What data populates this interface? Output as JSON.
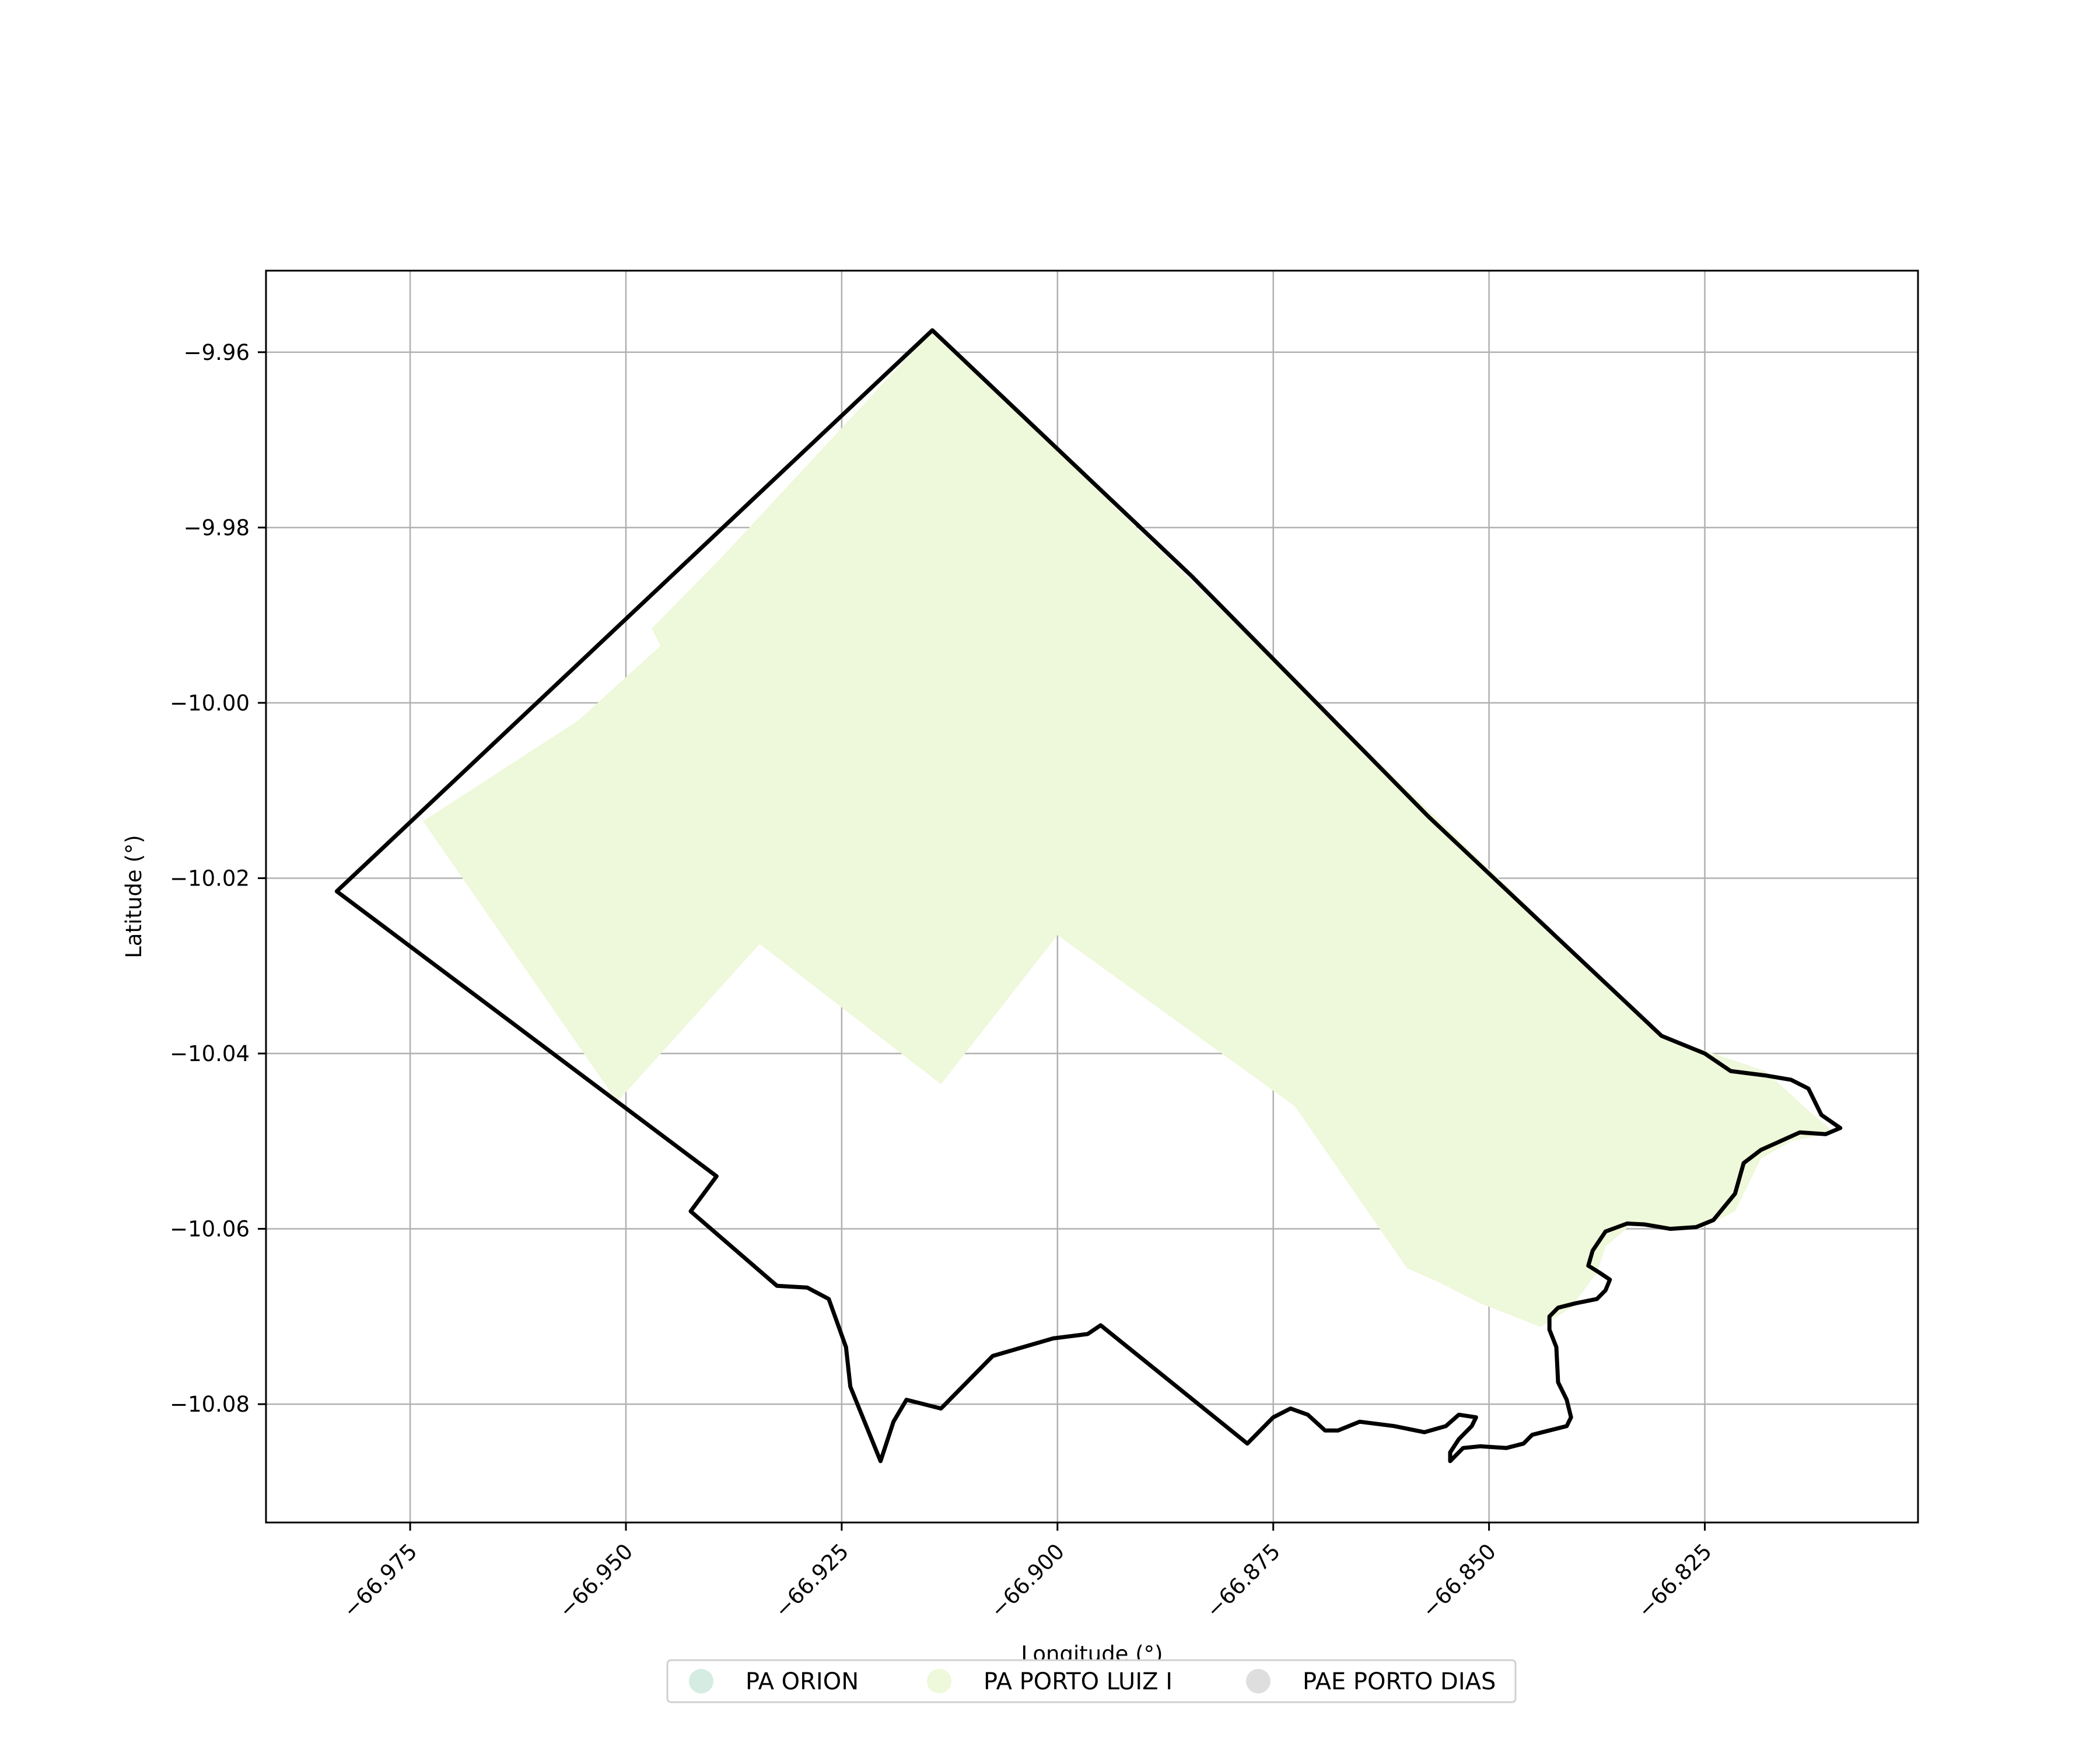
{
  "chart_data": {
    "type": "map",
    "xlabel": "Longitude (°)",
    "ylabel": "Latitude (°)",
    "xlim": [
      -66.9917,
      -66.8003
    ],
    "ylim": [
      -10.0935,
      -9.9507
    ],
    "x_ticks": [
      {
        "value": -66.975,
        "label": "−66.975"
      },
      {
        "value": -66.95,
        "label": "−66.950"
      },
      {
        "value": -66.925,
        "label": "−66.925"
      },
      {
        "value": -66.9,
        "label": "−66.900"
      },
      {
        "value": -66.875,
        "label": "−66.875"
      },
      {
        "value": -66.85,
        "label": "−66.850"
      },
      {
        "value": -66.825,
        "label": "−66.825"
      }
    ],
    "y_ticks": [
      {
        "value": -9.96,
        "label": "−9.96"
      },
      {
        "value": -9.98,
        "label": "−9.98"
      },
      {
        "value": -10.0,
        "label": "−10.00"
      },
      {
        "value": -10.02,
        "label": "−10.02"
      },
      {
        "value": -10.04,
        "label": "−10.04"
      },
      {
        "value": -10.06,
        "label": "−10.06"
      },
      {
        "value": -10.08,
        "label": "−10.08"
      }
    ],
    "grid": true,
    "legend_position": "bottom-center",
    "legend": [
      {
        "label": "PA ORION",
        "color": "#d4ece1"
      },
      {
        "label": "PA PORTO LUIZ I",
        "color": "#eef8da"
      },
      {
        "label": "PAE PORTO DIAS",
        "color": "#dedede"
      }
    ],
    "fill_color": "#eef8da",
    "outline_color": "#000000",
    "fill_polygon": [
      [
        -66.9145,
        -9.9575
      ],
      [
        -66.83,
        -10.038
      ],
      [
        -66.818,
        -10.042
      ],
      [
        -66.813,
        -10.0465
      ],
      [
        -66.81,
        -10.049
      ],
      [
        -66.815,
        -10.05
      ],
      [
        -66.8185,
        -10.052
      ],
      [
        -66.8215,
        -10.058
      ],
      [
        -66.8255,
        -10.06
      ],
      [
        -66.8335,
        -10.0595
      ],
      [
        -66.8365,
        -10.062
      ],
      [
        -66.8375,
        -10.065
      ],
      [
        -66.8405,
        -10.069
      ],
      [
        -66.844,
        -10.0712
      ],
      [
        -66.851,
        -10.0685
      ],
      [
        -66.856,
        -10.066
      ],
      [
        -66.8595,
        -10.0645
      ],
      [
        -66.8725,
        -10.046
      ],
      [
        -66.9,
        -10.0265
      ],
      [
        -66.9135,
        -10.0435
      ],
      [
        -66.9345,
        -10.0275
      ],
      [
        -66.951,
        -10.0455
      ],
      [
        -66.9735,
        -10.0135
      ],
      [
        -66.9555,
        -10.002
      ],
      [
        -66.946,
        -9.9935
      ],
      [
        -66.947,
        -9.9915
      ],
      [
        -66.939,
        -9.9835
      ]
    ],
    "outline_polygon": [
      [
        -66.9145,
        -9.9575
      ],
      [
        -66.8845,
        -9.9855
      ],
      [
        -66.857,
        -10.013
      ],
      [
        -66.83,
        -10.038
      ],
      [
        -66.825,
        -10.04
      ],
      [
        -66.822,
        -10.042
      ],
      [
        -66.818,
        -10.0425
      ],
      [
        -66.815,
        -10.043
      ],
      [
        -66.813,
        -10.044
      ],
      [
        -66.8115,
        -10.047
      ],
      [
        -66.8093,
        -10.0485
      ],
      [
        -66.811,
        -10.0492
      ],
      [
        -66.814,
        -10.049
      ],
      [
        -66.8185,
        -10.051
      ],
      [
        -66.8205,
        -10.0525
      ],
      [
        -66.8215,
        -10.056
      ],
      [
        -66.824,
        -10.059
      ],
      [
        -66.826,
        -10.0598
      ],
      [
        -66.829,
        -10.06
      ],
      [
        -66.832,
        -10.0595
      ],
      [
        -66.834,
        -10.0594
      ],
      [
        -66.8365,
        -10.0603
      ],
      [
        -66.838,
        -10.0625
      ],
      [
        -66.8385,
        -10.0642
      ],
      [
        -66.8372,
        -10.065
      ],
      [
        -66.836,
        -10.0658
      ],
      [
        -66.8365,
        -10.067
      ],
      [
        -66.8375,
        -10.068
      ],
      [
        -66.84,
        -10.0685
      ],
      [
        -66.842,
        -10.069
      ],
      [
        -66.843,
        -10.07
      ],
      [
        -66.843,
        -10.0715
      ],
      [
        -66.8422,
        -10.0735
      ],
      [
        -66.842,
        -10.0775
      ],
      [
        -66.841,
        -10.0795
      ],
      [
        -66.8405,
        -10.0815
      ],
      [
        -66.841,
        -10.0825
      ],
      [
        -66.843,
        -10.083
      ],
      [
        -66.845,
        -10.0835
      ],
      [
        -66.846,
        -10.0845
      ],
      [
        -66.848,
        -10.085
      ],
      [
        -66.851,
        -10.0848
      ],
      [
        -66.853,
        -10.085
      ],
      [
        -66.8545,
        -10.0865
      ],
      [
        -66.8545,
        -10.0855
      ],
      [
        -66.8535,
        -10.084
      ],
      [
        -66.852,
        -10.0825
      ],
      [
        -66.8515,
        -10.0815
      ],
      [
        -66.8535,
        -10.0812
      ],
      [
        -66.855,
        -10.0825
      ],
      [
        -66.8575,
        -10.0832
      ],
      [
        -66.861,
        -10.0825
      ],
      [
        -66.865,
        -10.082
      ],
      [
        -66.8675,
        -10.083
      ],
      [
        -66.869,
        -10.083
      ],
      [
        -66.871,
        -10.0812
      ],
      [
        -66.873,
        -10.0805
      ],
      [
        -66.875,
        -10.0815
      ],
      [
        -66.8765,
        -10.083
      ],
      [
        -66.878,
        -10.0845
      ],
      [
        -66.895,
        -10.071
      ],
      [
        -66.8965,
        -10.072
      ],
      [
        -66.9005,
        -10.0725
      ],
      [
        -66.9075,
        -10.0745
      ],
      [
        -66.9135,
        -10.0805
      ],
      [
        -66.9175,
        -10.0795
      ],
      [
        -66.919,
        -10.082
      ],
      [
        -66.9205,
        -10.0865
      ],
      [
        -66.924,
        -10.078
      ],
      [
        -66.9245,
        -10.0735
      ],
      [
        -66.9265,
        -10.068
      ],
      [
        -66.929,
        -10.0667
      ],
      [
        -66.9325,
        -10.0665
      ],
      [
        -66.9425,
        -10.058
      ],
      [
        -66.9395,
        -10.054
      ],
      [
        -66.9835,
        -10.0215
      ]
    ]
  }
}
